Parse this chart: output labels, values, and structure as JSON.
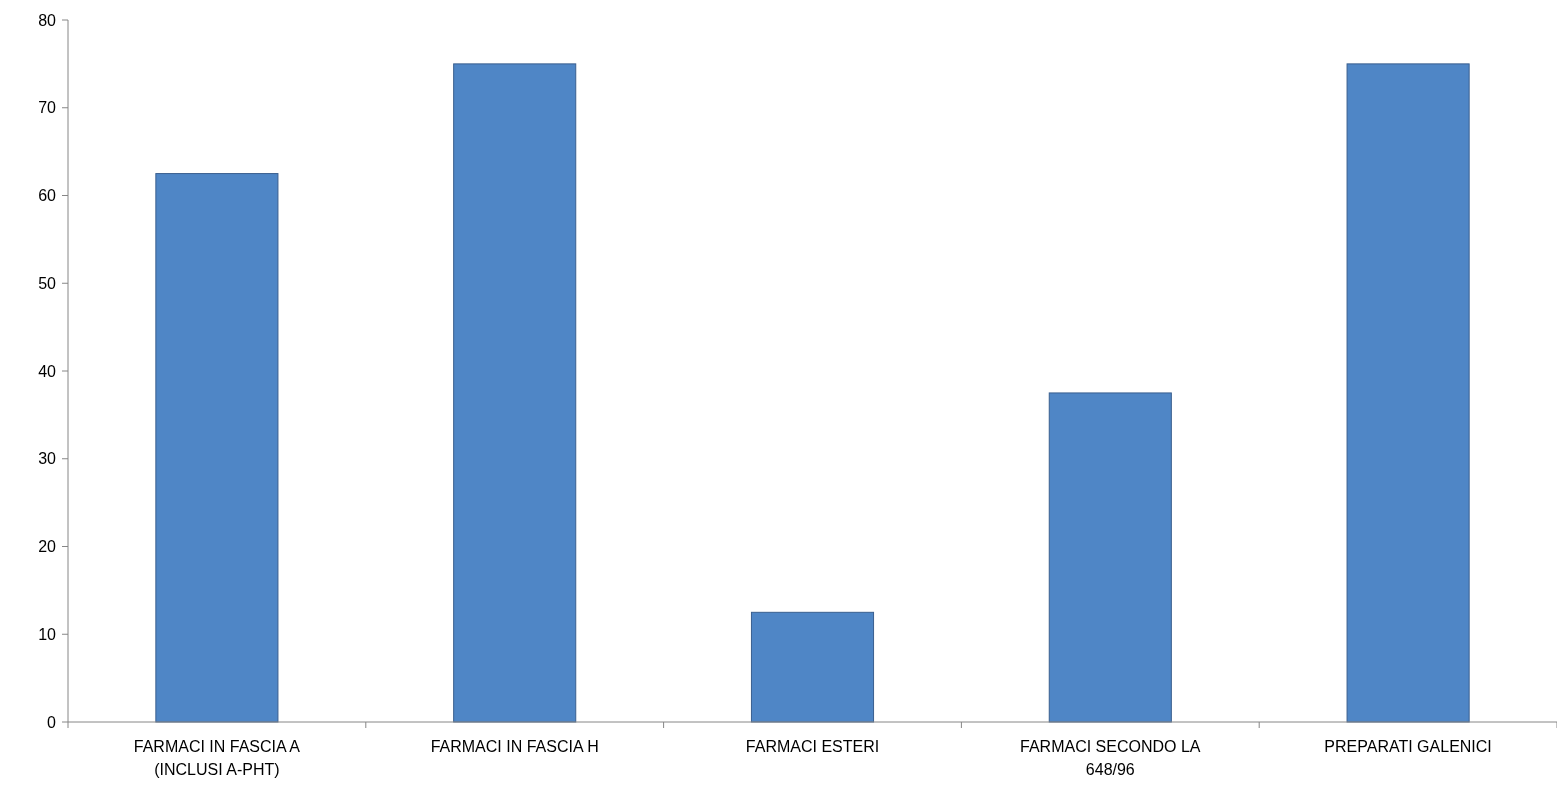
{
  "chart_data": {
    "type": "bar",
    "categories": [
      "FARMACI IN FASCIA A (INCLUSI A-PHT)",
      "FARMACI IN FASCIA H",
      "FARMACI ESTERI",
      "FARMACI SECONDO LA 648/96",
      "PREPARATI GALENICI"
    ],
    "values": [
      62.5,
      75,
      12.5,
      37.5,
      75
    ],
    "color": "#4f86c6",
    "ylim": [
      0,
      80
    ],
    "yticks": [
      0,
      10,
      20,
      30,
      40,
      50,
      60,
      70,
      80
    ],
    "grid": false
  }
}
